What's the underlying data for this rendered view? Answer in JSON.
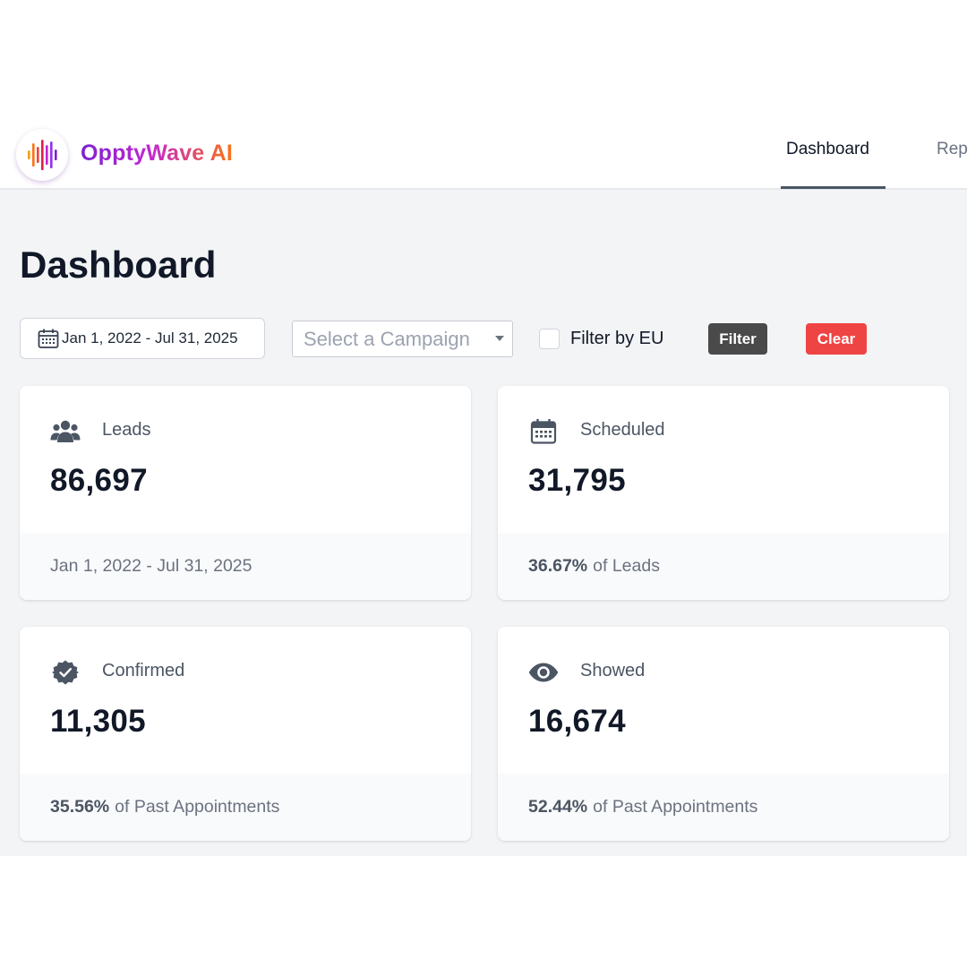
{
  "header": {
    "brand": "OpptyWave AI",
    "logo_icon": "waveform-logo-icon",
    "brand_gradient": [
      "#7e22ce",
      "#c026d3",
      "#f97316"
    ],
    "nav": [
      {
        "label": "Dashboard",
        "active": true
      },
      {
        "label": "Rep",
        "active": false
      }
    ]
  },
  "page": {
    "title": "Dashboard"
  },
  "filters": {
    "date_range": "Jan 1, 2022 - Jul 31, 2025",
    "date_icon": "calendar-icon",
    "campaign_placeholder": "Select a Campaign",
    "eu_label": "Filter by EU",
    "eu_checked": false,
    "filter_button": "Filter",
    "clear_button": "Clear",
    "filter_button_color": "#4a4a4a",
    "clear_button_color": "#ef4444"
  },
  "cards": [
    {
      "icon": "users-icon",
      "label": "Leads",
      "value": "86,697",
      "footer_pct": "",
      "footer_text": "Jan 1, 2022 - Jul 31, 2025"
    },
    {
      "icon": "calendar-icon",
      "label": "Scheduled",
      "value": "31,795",
      "footer_pct": "36.67%",
      "footer_text": "of Leads"
    },
    {
      "icon": "verified-badge-icon",
      "label": "Confirmed",
      "value": "11,305",
      "footer_pct": "35.56%",
      "footer_text": "of Past Appointments"
    },
    {
      "icon": "eye-icon",
      "label": "Showed",
      "value": "16,674",
      "footer_pct": "52.44%",
      "footer_text": "of Past Appointments"
    }
  ]
}
